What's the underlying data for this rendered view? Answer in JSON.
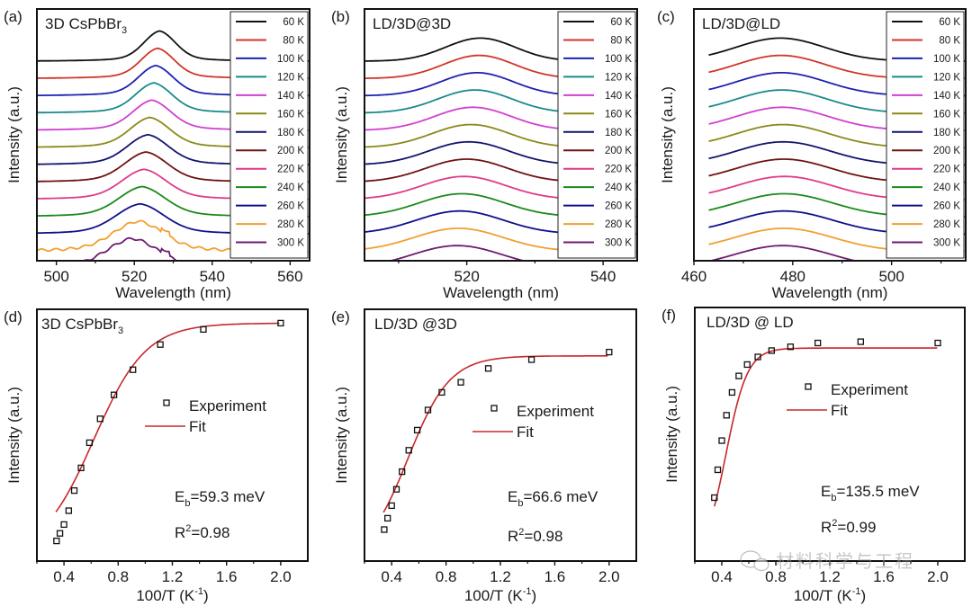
{
  "chart_data": [
    {
      "id": "a",
      "type": "line",
      "panel_label": "(a)",
      "title": "3D CsPbBr3",
      "title_main": "3D CsPbBr",
      "title_sub": "3",
      "xlabel": "Wavelength (nm)",
      "ylabel": "Intensity (a.u.)",
      "xlim": [
        495,
        565
      ],
      "xticks": [
        500,
        520,
        540,
        560
      ],
      "xminor": [
        510,
        530,
        550
      ],
      "legend_position": "right",
      "series": [
        {
          "name": "60 K",
          "color": "#111111",
          "peak_nm": 526.5,
          "fwhm_nm": 9.5
        },
        {
          "name": "80 K",
          "color": "#d0362a",
          "peak_nm": 526.0,
          "fwhm_nm": 10.0
        },
        {
          "name": "100 K",
          "color": "#1c22b0",
          "peak_nm": 525.5,
          "fwhm_nm": 10.5
        },
        {
          "name": "120 K",
          "color": "#1a8a8a",
          "peak_nm": 525.0,
          "fwhm_nm": 11.0
        },
        {
          "name": "140 K",
          "color": "#d040d0",
          "peak_nm": 524.5,
          "fwhm_nm": 11.5
        },
        {
          "name": "160 K",
          "color": "#8a8a1a",
          "peak_nm": 524.0,
          "fwhm_nm": 12.0
        },
        {
          "name": "180 K",
          "color": "#14146e",
          "peak_nm": 523.5,
          "fwhm_nm": 12.5
        },
        {
          "name": "200 K",
          "color": "#701212",
          "peak_nm": 523.0,
          "fwhm_nm": 13.0
        },
        {
          "name": "220 K",
          "color": "#e03a8a",
          "peak_nm": 522.5,
          "fwhm_nm": 13.5
        },
        {
          "name": "240 K",
          "color": "#1a8a1a",
          "peak_nm": 522.0,
          "fwhm_nm": 14.0
        },
        {
          "name": "260 K",
          "color": "#10108a",
          "peak_nm": 521.5,
          "fwhm_nm": 14.5
        },
        {
          "name": "280 K",
          "color": "#f0a030",
          "peak_nm": 521.0,
          "fwhm_nm": 15.0
        },
        {
          "name": "300 K",
          "color": "#701a70",
          "peak_nm": 519.5,
          "fwhm_nm": 15.5
        }
      ]
    },
    {
      "id": "b",
      "type": "line",
      "panel_label": "(b)",
      "title": "LD/3D@3D",
      "title_main": "LD/3D@3D",
      "title_sub": "",
      "xlabel": "Wavelength (nm)",
      "ylabel": "Intensity (a.u.)",
      "xlim": [
        505,
        545
      ],
      "xticks": [
        520,
        540
      ],
      "xminor": [
        510,
        530
      ],
      "legend_position": "right",
      "series": [
        {
          "name": "60 K",
          "color": "#111111",
          "peak_nm": 522.0,
          "fwhm_nm": 12.0
        },
        {
          "name": "80 K",
          "color": "#d0362a",
          "peak_nm": 521.8,
          "fwhm_nm": 12.3
        },
        {
          "name": "100 K",
          "color": "#1c22b0",
          "peak_nm": 521.5,
          "fwhm_nm": 12.6
        },
        {
          "name": "120 K",
          "color": "#1a8a8a",
          "peak_nm": 521.2,
          "fwhm_nm": 12.9
        },
        {
          "name": "140 K",
          "color": "#d040d0",
          "peak_nm": 520.9,
          "fwhm_nm": 13.2
        },
        {
          "name": "160 K",
          "color": "#8a8a1a",
          "peak_nm": 520.6,
          "fwhm_nm": 13.5
        },
        {
          "name": "180 K",
          "color": "#14146e",
          "peak_nm": 520.3,
          "fwhm_nm": 13.8
        },
        {
          "name": "200 K",
          "color": "#701212",
          "peak_nm": 520.0,
          "fwhm_nm": 14.1
        },
        {
          "name": "220 K",
          "color": "#e03a8a",
          "peak_nm": 519.6,
          "fwhm_nm": 14.4
        },
        {
          "name": "240 K",
          "color": "#1a8a1a",
          "peak_nm": 519.3,
          "fwhm_nm": 14.7
        },
        {
          "name": "260 K",
          "color": "#10108a",
          "peak_nm": 519.0,
          "fwhm_nm": 15.0
        },
        {
          "name": "280 K",
          "color": "#f0a030",
          "peak_nm": 518.8,
          "fwhm_nm": 15.3
        },
        {
          "name": "300 K",
          "color": "#701a70",
          "peak_nm": 518.6,
          "fwhm_nm": 15.6
        }
      ]
    },
    {
      "id": "c",
      "type": "line",
      "panel_label": "(c)",
      "title": "LD/3D@LD",
      "title_main": "LD/3D@LD",
      "title_sub": "",
      "xlabel": "Wavelength (nm)",
      "ylabel": "Intensity (a.u.)",
      "xlim": [
        460,
        515
      ],
      "xticks": [
        460,
        480,
        500
      ],
      "xminor": [
        470,
        490,
        510
      ],
      "legend_position": "right",
      "series": [
        {
          "name": "60 K",
          "color": "#111111",
          "peak_nm": 477.5,
          "fwhm_nm": 21.0
        },
        {
          "name": "80 K",
          "color": "#d0362a",
          "peak_nm": 477.6,
          "fwhm_nm": 21.2
        },
        {
          "name": "100 K",
          "color": "#1c22b0",
          "peak_nm": 477.7,
          "fwhm_nm": 21.4
        },
        {
          "name": "120 K",
          "color": "#1a8a8a",
          "peak_nm": 477.8,
          "fwhm_nm": 21.6
        },
        {
          "name": "140 K",
          "color": "#d040d0",
          "peak_nm": 477.9,
          "fwhm_nm": 21.8
        },
        {
          "name": "160 K",
          "color": "#8a8a1a",
          "peak_nm": 478.0,
          "fwhm_nm": 22.0
        },
        {
          "name": "180 K",
          "color": "#14146e",
          "peak_nm": 478.1,
          "fwhm_nm": 22.2
        },
        {
          "name": "200 K",
          "color": "#701212",
          "peak_nm": 478.2,
          "fwhm_nm": 22.4
        },
        {
          "name": "220 K",
          "color": "#e03a8a",
          "peak_nm": 478.3,
          "fwhm_nm": 22.6
        },
        {
          "name": "240 K",
          "color": "#1a8a1a",
          "peak_nm": 478.3,
          "fwhm_nm": 22.8
        },
        {
          "name": "260 K",
          "color": "#10108a",
          "peak_nm": 478.3,
          "fwhm_nm": 23.0
        },
        {
          "name": "280 K",
          "color": "#f0a030",
          "peak_nm": 478.2,
          "fwhm_nm": 23.2
        },
        {
          "name": "300 K",
          "color": "#701a70",
          "peak_nm": 478.0,
          "fwhm_nm": 23.4
        }
      ]
    },
    {
      "id": "d",
      "type": "scatter",
      "panel_label": "(d)",
      "title": "3D CsPbBr3",
      "title_main": "3D CsPbBr",
      "title_sub": "3",
      "xlabel": "100/T (K-1)",
      "xlabel_main": "100/T (K",
      "xlabel_sup": "-1",
      "xlabel_end": ")",
      "ylabel": "Intensity (a.u.)",
      "xlim": [
        0.2,
        2.2
      ],
      "ylim": [
        0,
        1
      ],
      "xticks": [
        "0.4",
        "0.8",
        "1.2",
        "1.6",
        "2.0"
      ],
      "xtick_values": [
        0.4,
        0.8,
        1.2,
        1.6,
        2.0
      ],
      "legend": {
        "experiment": "Experiment",
        "fit": "Fit"
      },
      "legend_position": "center-right",
      "annotation_eb_main": "E",
      "annotation_eb_sub": "b",
      "annotation_eb_value": "=59.3 meV",
      "annotation_r2_main": "R",
      "annotation_r2_sup": "2",
      "annotation_r2_value": "=0.98",
      "Eb_meV": 59.3,
      "R2": 0.98,
      "fit_color": "#c8282a",
      "experiment": {
        "x": [
          0.345,
          0.37,
          0.4,
          0.435,
          0.476,
          0.526,
          0.588,
          0.667,
          0.769,
          0.909,
          1.111,
          1.429,
          2.0
        ],
        "y": [
          0.08,
          0.11,
          0.145,
          0.2,
          0.28,
          0.37,
          0.47,
          0.565,
          0.66,
          0.76,
          0.86,
          0.92,
          0.945
        ]
      },
      "fit": {
        "x0": 0.62,
        "k": 5.2,
        "min": 0.02,
        "max": 0.945,
        "xstart": 0.34
      }
    },
    {
      "id": "e",
      "type": "scatter",
      "panel_label": "(e)",
      "title": "LD/3D @3D",
      "title_main": "LD/3D @3D",
      "title_sub": "",
      "xlabel": "100/T (K-1)",
      "xlabel_main": "100/T (K",
      "xlabel_sup": "-1",
      "xlabel_end": ")",
      "ylabel": "Intensity (a.u.)",
      "xlim": [
        0.2,
        2.2
      ],
      "ylim": [
        0,
        1
      ],
      "xticks": [
        "0.4",
        "0.8",
        "1.2",
        "1.6",
        "2.0"
      ],
      "xtick_values": [
        0.4,
        0.8,
        1.2,
        1.6,
        2.0
      ],
      "legend": {
        "experiment": "Experiment",
        "fit": "Fit"
      },
      "legend_position": "center-right",
      "annotation_eb_main": "E",
      "annotation_eb_sub": "b",
      "annotation_eb_value": "=66.6 meV",
      "annotation_r2_main": "R",
      "annotation_r2_sup": "2",
      "annotation_r2_value": "=0.98",
      "Eb_meV": 66.6,
      "R2": 0.98,
      "fit_color": "#c8282a",
      "experiment": {
        "x": [
          0.345,
          0.37,
          0.4,
          0.435,
          0.476,
          0.526,
          0.588,
          0.667,
          0.769,
          0.909,
          1.111,
          1.429,
          2.0
        ],
        "y": [
          0.125,
          0.17,
          0.22,
          0.285,
          0.355,
          0.44,
          0.52,
          0.6,
          0.67,
          0.71,
          0.765,
          0.8,
          0.83
        ]
      },
      "fit": {
        "x0": 0.52,
        "k": 6.5,
        "min": 0.0,
        "max": 0.815,
        "xstart": 0.34
      }
    },
    {
      "id": "f",
      "type": "scatter",
      "panel_label": "(f)",
      "title": "LD/3D @ LD",
      "title_main": "LD/3D @ LD",
      "title_sub": "",
      "xlabel": "100/T (K-1)",
      "xlabel_main": "100/T (K",
      "xlabel_sup": "-1",
      "xlabel_end": ")",
      "ylabel": "Intensity (a.u.)",
      "xlim": [
        0.2,
        2.2
      ],
      "ylim": [
        0,
        1
      ],
      "xticks": [
        "0.4",
        "0.8",
        "1.2",
        "1.6",
        "2.0"
      ],
      "xtick_values": [
        0.4,
        0.8,
        1.2,
        1.6,
        2.0
      ],
      "legend": {
        "experiment": "Experiment",
        "fit": "Fit"
      },
      "legend_position": "center-right",
      "annotation_eb_main": "E",
      "annotation_eb_sub": "b",
      "annotation_eb_value": "=135.5 meV",
      "annotation_r2_main": "R",
      "annotation_r2_sup": "2",
      "annotation_r2_value": "=0.99",
      "Eb_meV": 135.5,
      "R2": 0.99,
      "fit_color": "#c8282a",
      "experiment": {
        "x": [
          0.345,
          0.37,
          0.4,
          0.435,
          0.476,
          0.526,
          0.588,
          0.667,
          0.769,
          0.909,
          1.111,
          1.429,
          2.0
        ],
        "y": [
          0.25,
          0.36,
          0.475,
          0.575,
          0.665,
          0.73,
          0.775,
          0.805,
          0.83,
          0.845,
          0.86,
          0.865,
          0.86
        ]
      },
      "fit": {
        "x0": 0.43,
        "k": 12.5,
        "min": 0.0,
        "max": 0.84,
        "xstart": 0.345
      }
    }
  ],
  "watermark": {
    "text": "材料科学与工程",
    "icon": "wechat-icon"
  }
}
